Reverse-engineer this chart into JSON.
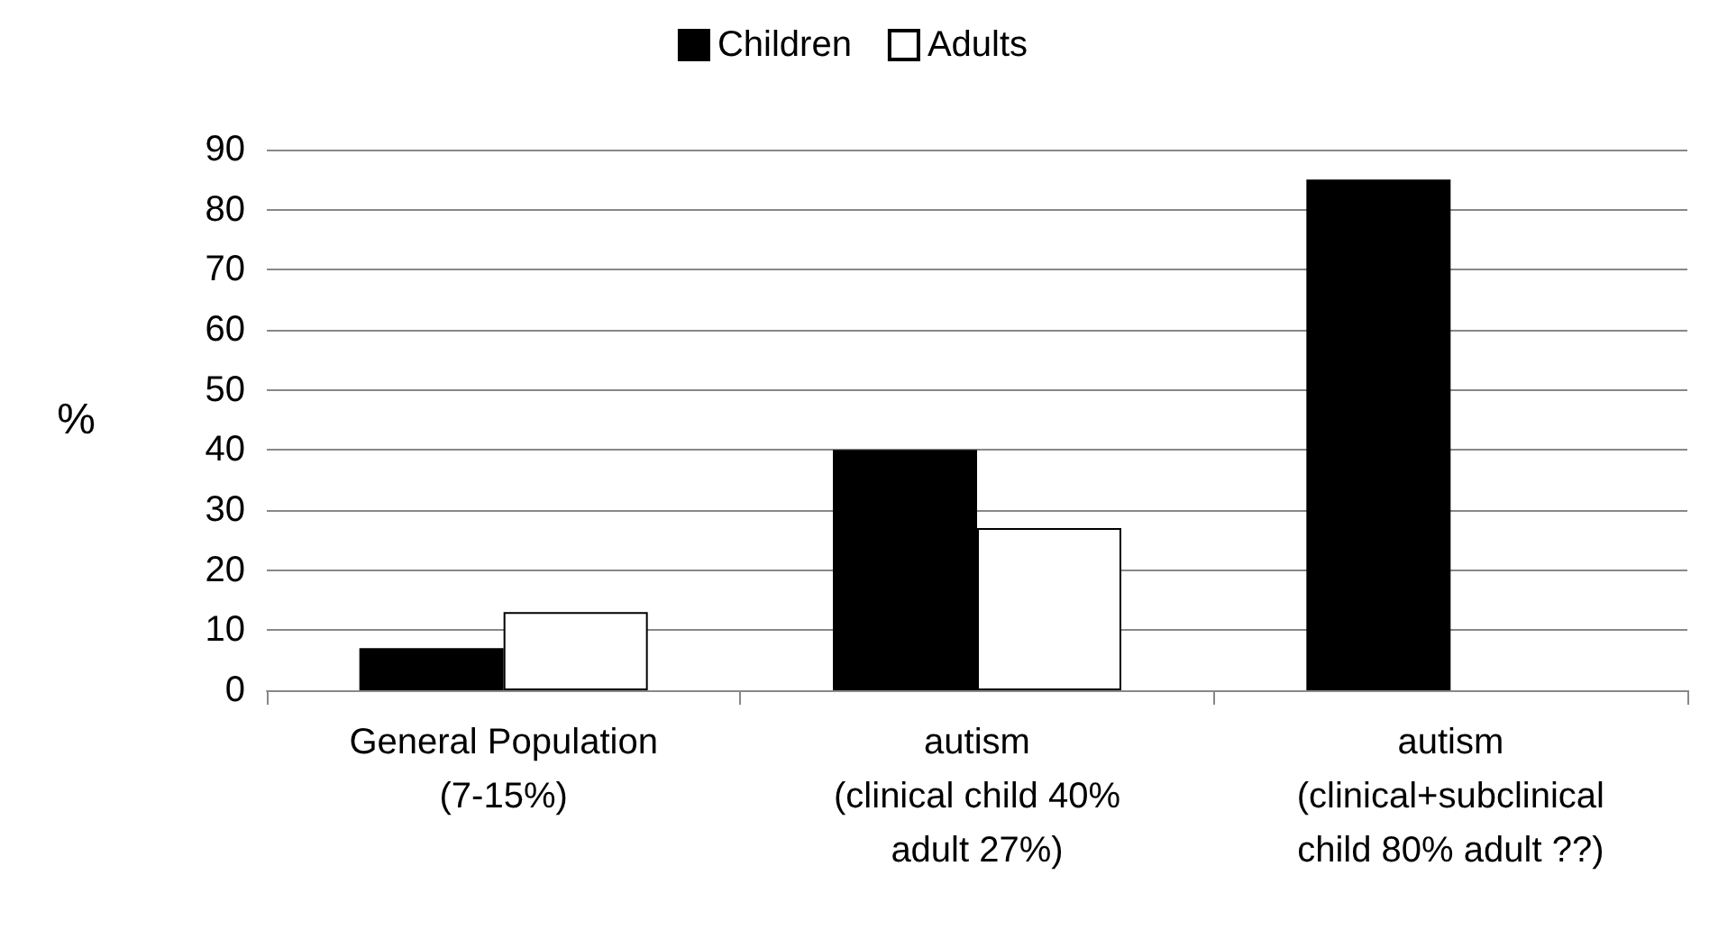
{
  "chart_data": {
    "type": "bar",
    "ylabel": "%",
    "categories": [
      "General Population\n(7-15%)",
      "autism\n(clinical child 40%\nadult 27%)",
      "autism\n(clinical+subclinical\nchild 80% adult ??)"
    ],
    "series": [
      {
        "name": "Children",
        "color": "#000000",
        "values": [
          7,
          40,
          85
        ]
      },
      {
        "name": "Adults",
        "color": "#ffffff",
        "values": [
          13,
          27,
          null
        ]
      }
    ],
    "ylim": [
      0,
      90
    ],
    "yticks": [
      0,
      10,
      20,
      30,
      40,
      50,
      60,
      70,
      80,
      90
    ],
    "grid": "y",
    "legend": "top"
  }
}
